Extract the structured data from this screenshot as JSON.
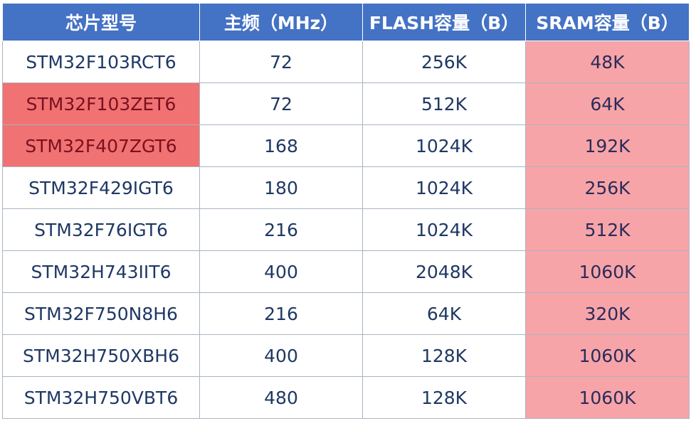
{
  "table": {
    "headers": [
      "芯片型号",
      "主频（MHz）",
      "FLASH容量（B）",
      "SRAM容量（B）"
    ],
    "rows": [
      {
        "model": "STM32F103RCT6",
        "freq": "72",
        "flash": "256K",
        "sram": "48K",
        "highlight": false
      },
      {
        "model": "STM32F103ZET6",
        "freq": "72",
        "flash": "512K",
        "sram": "64K",
        "highlight": true
      },
      {
        "model": "STM32F407ZGT6",
        "freq": "168",
        "flash": "1024K",
        "sram": "192K",
        "highlight": true
      },
      {
        "model": "STM32F429IGT6",
        "freq": "180",
        "flash": "1024K",
        "sram": "256K",
        "highlight": false
      },
      {
        "model": "STM32F76IGT6",
        "freq": "216",
        "flash": "1024K",
        "sram": "512K",
        "highlight": false
      },
      {
        "model": "STM32H743IIT6",
        "freq": "400",
        "flash": "2048K",
        "sram": "1060K",
        "highlight": false
      },
      {
        "model": "STM32F750N8H6",
        "freq": "216",
        "flash": "64K",
        "sram": "320K",
        "highlight": false
      },
      {
        "model": "STM32H750XBH6",
        "freq": "400",
        "flash": "128K",
        "sram": "1060K",
        "highlight": false
      },
      {
        "model": "STM32H750VBT6",
        "freq": "480",
        "flash": "128K",
        "sram": "1060K",
        "highlight": false
      }
    ]
  },
  "colors": {
    "header_bg": "#4472c4",
    "header_text": "#ffffff",
    "body_text": "#1f3864",
    "highlight_model_bg": "#f07272",
    "sram_column_bg": "#f7a4a8"
  }
}
